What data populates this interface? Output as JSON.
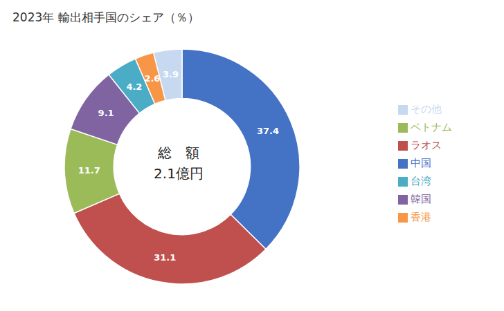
{
  "chart_data": {
    "type": "donut",
    "title": "2023年 輸出相手国のシェア（％）",
    "categories": [
      "中国",
      "ラオス",
      "ベトナム",
      "韓国",
      "台湾",
      "香港",
      "その他"
    ],
    "values": [
      37.4,
      31.1,
      11.7,
      9.1,
      4.2,
      2.6,
      3.9
    ],
    "colors": [
      "#4472C4",
      "#C0504D",
      "#9BBB59",
      "#8064A2",
      "#4BACC6",
      "#F79646",
      "#C6D9F1"
    ],
    "annotations": [
      "総　額",
      "2.1億円"
    ],
    "data_labels": true,
    "legend": "right"
  }
}
